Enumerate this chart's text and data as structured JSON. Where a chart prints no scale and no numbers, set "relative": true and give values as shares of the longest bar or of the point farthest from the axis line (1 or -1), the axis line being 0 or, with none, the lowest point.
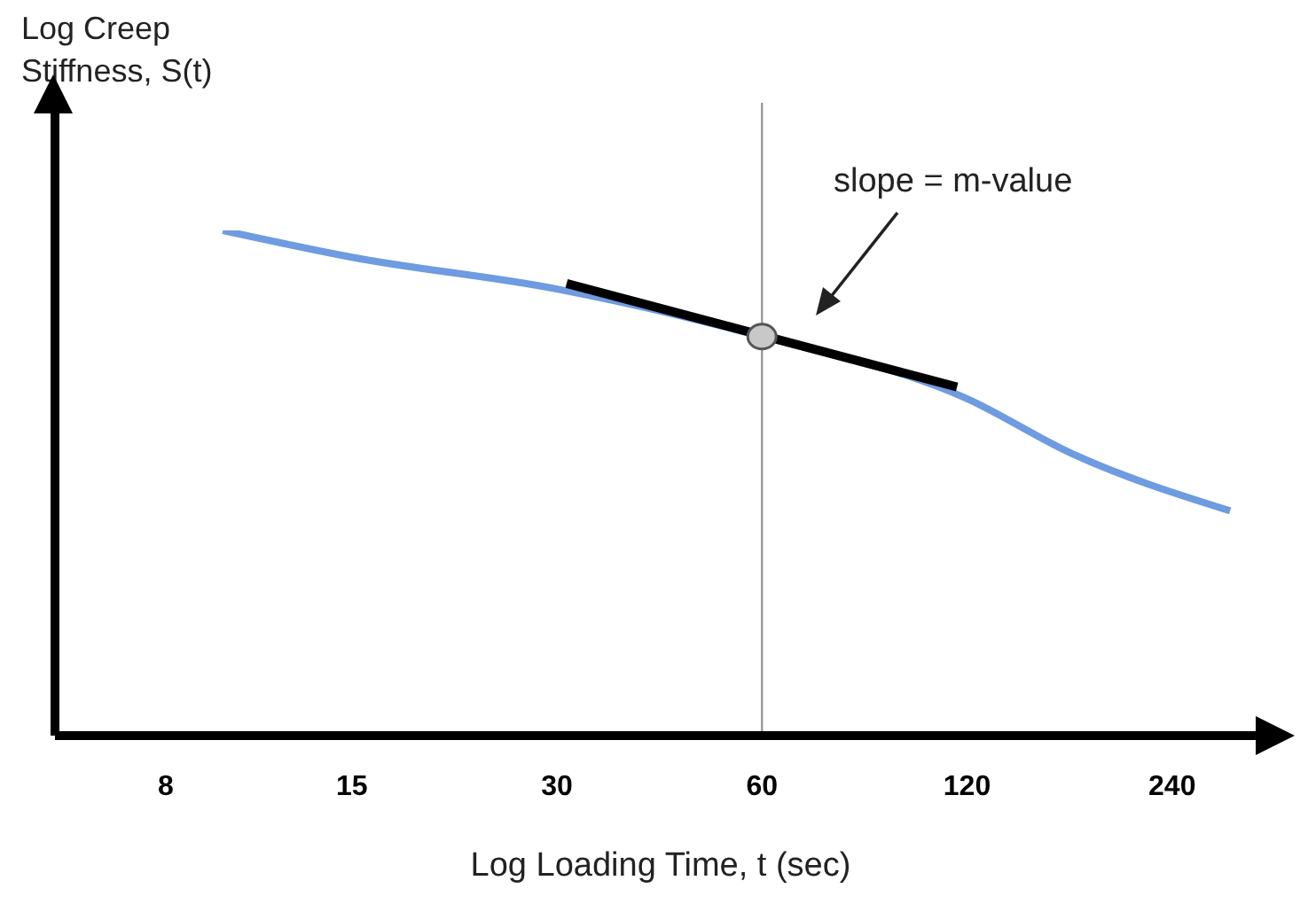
{
  "chart_data": {
    "type": "line",
    "relative": true,
    "log": "x",
    "xlabel": "Log Loading Time, t (sec)",
    "ylabel": "Log Creep Stiffness, S(t)",
    "xlim": [
      5.5,
      330
    ],
    "xticks": [
      8,
      15,
      30,
      60,
      120,
      240
    ],
    "annotations": [
      "slope = m-value"
    ],
    "ref_lines": [
      {
        "axis": "x",
        "value": 60,
        "color": "#999999"
      }
    ],
    "series": [
      {
        "color": "#6f9be0",
        "x": [
          9.7,
          15,
          30,
          60,
          120,
          170,
          292
        ],
        "values": [
          1,
          0.947,
          0.884,
          0.79,
          0.667,
          0.56,
          0.445
        ]
      },
      {
        "type": "line",
        "color": "#000000",
        "x": [
          31,
          116
        ],
        "values": [
          0.895,
          0.69
        ]
      },
      {
        "type": "scatter",
        "color": "#c8c8c8",
        "marker": "circle",
        "x": [
          60
        ],
        "values": [
          0.79
        ]
      }
    ]
  }
}
